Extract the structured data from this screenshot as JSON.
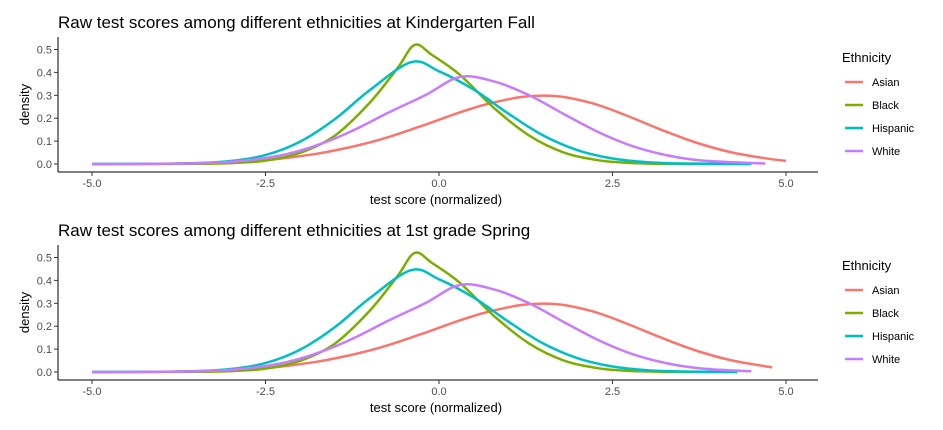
{
  "chart_data": [
    {
      "type": "line",
      "title": "Raw test scores among different ethnicities at Kindergarten Fall",
      "xlabel": "test score (normalized)",
      "ylabel": "density",
      "xlim": [
        -5,
        5
      ],
      "ylim": [
        0,
        0.52
      ],
      "x_ticks": [
        "-5.0",
        "-2.5",
        "0.0",
        "2.5",
        "5.0"
      ],
      "x_tick_values": [
        -5,
        -2.5,
        0,
        2.5,
        5
      ],
      "y_ticks": [
        "0.0",
        "0.1",
        "0.2",
        "0.3",
        "0.4",
        "0.5"
      ],
      "y_tick_values": [
        0,
        0.1,
        0.2,
        0.3,
        0.4,
        0.5
      ],
      "grid": false,
      "legend": {
        "title": "Ethnicity",
        "position": "right"
      },
      "series": [
        {
          "name": "Asian",
          "color": "#F8766D",
          "range": [
            -3.8,
            5.0
          ],
          "x": [
            -3.8,
            -3.3,
            -2.8,
            -2.3,
            -1.8,
            -1.3,
            -0.8,
            -0.3,
            0.2,
            0.45,
            0.7,
            1.2,
            1.7,
            2.2,
            2.7,
            3.2,
            3.7,
            4.2,
            4.7,
            5.0
          ],
          "y": [
            0.002,
            0.005,
            0.011,
            0.023,
            0.043,
            0.072,
            0.111,
            0.161,
            0.215,
            0.24,
            0.262,
            0.293,
            0.296,
            0.266,
            0.212,
            0.15,
            0.094,
            0.052,
            0.025,
            0.014
          ]
        },
        {
          "name": "Black",
          "color": "#7CAE00",
          "range": [
            -5.0,
            4.2
          ],
          "x": [
            -5.0,
            -3.5,
            -3.0,
            -2.5,
            -2.0,
            -1.5,
            -1.0,
            -0.6,
            -0.35,
            -0.1,
            0.3,
            0.8,
            1.3,
            1.8,
            2.3,
            2.8,
            3.3,
            4.2
          ],
          "y": [
            0,
            0.001,
            0.004,
            0.015,
            0.049,
            0.124,
            0.267,
            0.418,
            0.52,
            0.476,
            0.39,
            0.243,
            0.124,
            0.05,
            0.016,
            0.004,
            0.001,
            0
          ],
          "note_peak": [
            -0.35,
            0.52
          ]
        },
        {
          "name": "Hispanic",
          "color": "#00BFC4",
          "range": [
            -5.0,
            4.5
          ],
          "x": [
            -5.0,
            -4.0,
            -3.5,
            -3.0,
            -2.5,
            -2.0,
            -1.5,
            -1.0,
            -0.4,
            0.0,
            0.5,
            1.0,
            1.5,
            2.0,
            2.5,
            3.0,
            3.5,
            4.5
          ],
          "y": [
            0,
            0.001,
            0.004,
            0.013,
            0.039,
            0.098,
            0.196,
            0.322,
            0.445,
            0.405,
            0.325,
            0.22,
            0.125,
            0.06,
            0.024,
            0.008,
            0.002,
            0
          ]
        },
        {
          "name": "White",
          "color": "#C77CFF",
          "range": [
            -5.0,
            4.7
          ],
          "x": [
            -5.0,
            -4.0,
            -3.2,
            -2.7,
            -2.2,
            -1.7,
            -1.2,
            -0.7,
            -0.2,
            0.3,
            0.8,
            1.3,
            1.8,
            2.3,
            2.8,
            3.3,
            3.8,
            4.7
          ],
          "y": [
            0,
            0.001,
            0.006,
            0.018,
            0.043,
            0.088,
            0.152,
            0.229,
            0.3,
            0.38,
            0.36,
            0.3,
            0.218,
            0.139,
            0.077,
            0.037,
            0.015,
            0.002
          ]
        }
      ]
    },
    {
      "type": "line",
      "title": "Raw test scores among different ethnicities at 1st grade Spring",
      "xlabel": "test score (normalized)",
      "ylabel": "density",
      "xlim": [
        -5,
        5
      ],
      "ylim": [
        0,
        0.52
      ],
      "x_ticks": [
        "-5.0",
        "-2.5",
        "0.0",
        "2.5",
        "5.0"
      ],
      "x_tick_values": [
        -5,
        -2.5,
        0,
        2.5,
        5
      ],
      "y_ticks": [
        "0.0",
        "0.1",
        "0.2",
        "0.3",
        "0.4",
        "0.5"
      ],
      "y_tick_values": [
        0,
        0.1,
        0.2,
        0.3,
        0.4,
        0.5
      ],
      "grid": false,
      "legend": {
        "title": "Ethnicity",
        "position": "right"
      },
      "series": [
        {
          "name": "Asian",
          "color": "#F8766D",
          "range": [
            -3.8,
            4.8
          ],
          "x": [
            -3.8,
            -3.3,
            -2.8,
            -2.3,
            -1.8,
            -1.3,
            -0.8,
            -0.3,
            0.2,
            0.45,
            0.7,
            1.2,
            1.7,
            2.2,
            2.7,
            3.2,
            3.7,
            4.2,
            4.8
          ],
          "y": [
            0.002,
            0.005,
            0.011,
            0.023,
            0.043,
            0.072,
            0.111,
            0.161,
            0.215,
            0.24,
            0.262,
            0.293,
            0.296,
            0.266,
            0.212,
            0.15,
            0.094,
            0.052,
            0.02
          ]
        },
        {
          "name": "Black",
          "color": "#7CAE00",
          "range": [
            -5.0,
            3.9
          ],
          "x": [
            -5.0,
            -3.5,
            -3.0,
            -2.5,
            -2.0,
            -1.5,
            -1.0,
            -0.6,
            -0.35,
            -0.1,
            0.3,
            0.8,
            1.3,
            1.8,
            2.3,
            2.8,
            3.3,
            3.9
          ],
          "y": [
            0,
            0.001,
            0.004,
            0.015,
            0.049,
            0.124,
            0.267,
            0.418,
            0.52,
            0.476,
            0.39,
            0.243,
            0.124,
            0.05,
            0.016,
            0.004,
            0.001,
            0
          ]
        },
        {
          "name": "Hispanic",
          "color": "#00BFC4",
          "range": [
            -5.0,
            4.3
          ],
          "x": [
            -5.0,
            -4.0,
            -3.5,
            -3.0,
            -2.5,
            -2.0,
            -1.5,
            -1.0,
            -0.4,
            0.0,
            0.5,
            1.0,
            1.5,
            2.0,
            2.5,
            3.0,
            3.5,
            4.3
          ],
          "y": [
            0,
            0.001,
            0.004,
            0.013,
            0.039,
            0.098,
            0.196,
            0.322,
            0.445,
            0.405,
            0.325,
            0.22,
            0.125,
            0.06,
            0.024,
            0.008,
            0.002,
            0
          ]
        },
        {
          "name": "White",
          "color": "#C77CFF",
          "range": [
            -5.0,
            4.5
          ],
          "x": [
            -5.0,
            -4.0,
            -3.2,
            -2.7,
            -2.2,
            -1.7,
            -1.2,
            -0.7,
            -0.2,
            0.3,
            0.8,
            1.3,
            1.8,
            2.3,
            2.8,
            3.3,
            3.8,
            4.5
          ],
          "y": [
            0,
            0.001,
            0.006,
            0.018,
            0.043,
            0.088,
            0.152,
            0.229,
            0.3,
            0.38,
            0.36,
            0.3,
            0.218,
            0.139,
            0.077,
            0.037,
            0.015,
            0.003
          ]
        }
      ]
    }
  ]
}
